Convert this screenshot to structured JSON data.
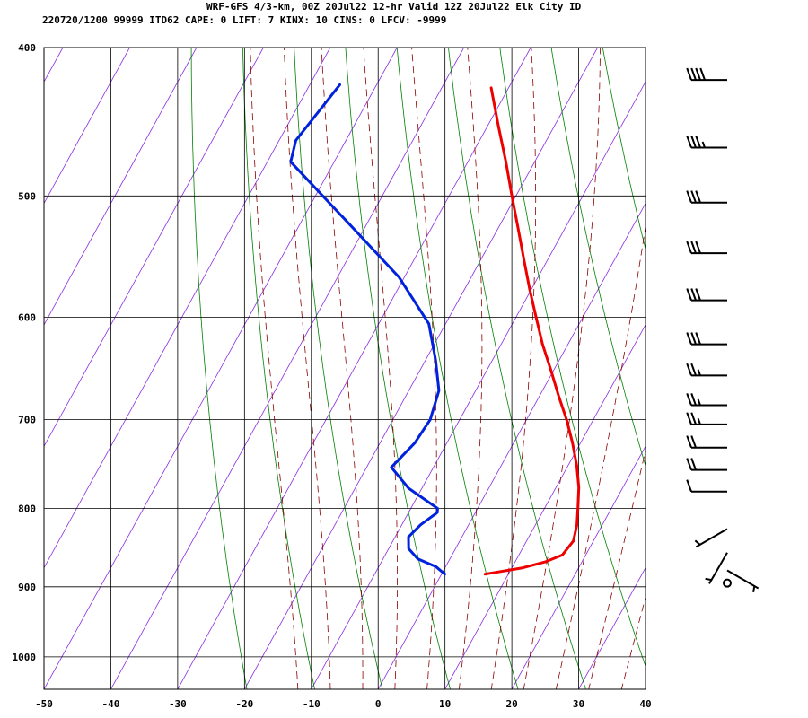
{
  "header": {
    "line1": "WRF-GFS 4/3-km, 00Z 20Jul22 12-hr Valid 12Z 20Jul22 Elk City ID",
    "line2": "220720/1200 99999  ITD62   CAPE:     0 LIFT:     7 KINX:    10 CINS:     0 LFCV: -9999"
  },
  "chart_data": {
    "type": "line",
    "title": "WRF-GFS 4/3-km, 00Z 20Jul22 12-hr Valid 12Z 20Jul22 Elk City ID",
    "xlabel": "",
    "ylabel": "",
    "x_range_C": [
      -50,
      40
    ],
    "y_range_hPa": [
      400,
      1050
    ],
    "y_scale": "log-pressure",
    "skew": "temperature isotherms skewed to the right",
    "x_ticks": [
      "-50",
      "-40",
      "-30",
      "-20",
      "-10",
      "0",
      "10",
      "20",
      "30",
      "40"
    ],
    "y_ticks": [
      "400",
      "500",
      "600",
      "700",
      "800",
      "900",
      "1000"
    ],
    "grid": true,
    "series": [
      {
        "id": "temperature",
        "color": "#ee0000",
        "points": [
          {
            "p": 883,
            "t": 6.5
          },
          {
            "p": 875,
            "t": 11.5
          },
          {
            "p": 867,
            "t": 14.5
          },
          {
            "p": 858,
            "t": 16.5
          },
          {
            "p": 840,
            "t": 17.0
          },
          {
            "p": 820,
            "t": 16.2
          },
          {
            "p": 800,
            "t": 15.0
          },
          {
            "p": 775,
            "t": 13.4
          },
          {
            "p": 750,
            "t": 11.3
          },
          {
            "p": 725,
            "t": 8.8
          },
          {
            "p": 700,
            "t": 6.0
          },
          {
            "p": 675,
            "t": 2.8
          },
          {
            "p": 650,
            "t": -0.4
          },
          {
            "p": 625,
            "t": -3.8
          },
          {
            "p": 600,
            "t": -7.0
          },
          {
            "p": 575,
            "t": -10.3
          },
          {
            "p": 550,
            "t": -13.6
          },
          {
            "p": 525,
            "t": -17.0
          },
          {
            "p": 500,
            "t": -20.6
          },
          {
            "p": 475,
            "t": -24.3
          },
          {
            "p": 450,
            "t": -28.4
          },
          {
            "p": 425,
            "t": -32.6
          }
        ]
      },
      {
        "id": "dewpoint",
        "color": "#0022dd",
        "points": [
          {
            "p": 883,
            "t": 0.5
          },
          {
            "p": 873,
            "t": -1.5
          },
          {
            "p": 863,
            "t": -4.8
          },
          {
            "p": 850,
            "t": -7.0
          },
          {
            "p": 835,
            "t": -8.0
          },
          {
            "p": 820,
            "t": -7.2
          },
          {
            "p": 805,
            "t": -5.7
          },
          {
            "p": 800,
            "t": -6.0
          },
          {
            "p": 776,
            "t": -12.0
          },
          {
            "p": 752,
            "t": -16.3
          },
          {
            "p": 725,
            "t": -14.8
          },
          {
            "p": 700,
            "t": -14.4
          },
          {
            "p": 670,
            "t": -15.5
          },
          {
            "p": 640,
            "t": -18.5
          },
          {
            "p": 606,
            "t": -22.5
          },
          {
            "p": 565,
            "t": -30.8
          },
          {
            "p": 522,
            "t": -42.5
          },
          {
            "p": 475,
            "t": -56.5
          },
          {
            "p": 460,
            "t": -57.5
          },
          {
            "p": 423,
            "t": -55.5
          }
        ]
      }
    ],
    "background_lines": {
      "isotherms_C": [
        -100,
        -90,
        -80,
        -70,
        -60,
        -50,
        -40,
        -30,
        -20,
        -10,
        0,
        10,
        20,
        30,
        40
      ],
      "dry_adiabats_K": [
        250,
        260,
        270,
        280,
        290,
        300,
        310,
        320,
        330,
        340,
        350,
        360,
        370,
        380,
        390
      ],
      "moist_adiabats_C": [
        -15,
        -10,
        -5,
        0,
        5,
        10,
        15,
        20,
        25,
        30,
        35
      ],
      "mixing_ratio_gkg": [
        0.4,
        1,
        2,
        3,
        5,
        8,
        12,
        20
      ]
    },
    "wind_barbs": [
      {
        "p": 420,
        "dir": 270,
        "kt": 40
      },
      {
        "p": 465,
        "dir": 270,
        "kt": 35
      },
      {
        "p": 505,
        "dir": 270,
        "kt": 30
      },
      {
        "p": 545,
        "dir": 270,
        "kt": 30
      },
      {
        "p": 585,
        "dir": 270,
        "kt": 30
      },
      {
        "p": 625,
        "dir": 270,
        "kt": 30
      },
      {
        "p": 655,
        "dir": 270,
        "kt": 25
      },
      {
        "p": 685,
        "dir": 270,
        "kt": 25
      },
      {
        "p": 705,
        "dir": 270,
        "kt": 25
      },
      {
        "p": 730,
        "dir": 270,
        "kt": 20
      },
      {
        "p": 755,
        "dir": 270,
        "kt": 20
      },
      {
        "p": 780,
        "dir": 270,
        "kt": 10
      },
      {
        "p": 825,
        "dir": 240,
        "kt": 5
      },
      {
        "p": 855,
        "dir": 210,
        "kt": 5
      },
      {
        "p": 878,
        "dir": 120,
        "kt": 5
      },
      {
        "p": 895,
        "dir": 0,
        "kt": 0
      }
    ],
    "colors": {
      "isotherm": "#8a2be2",
      "dry_adiabat": "#008000",
      "moist_adiabat": "#8b0000",
      "grid": "#000000",
      "temperature": "#ee0000",
      "dewpoint": "#0022dd",
      "barb": "#000000"
    }
  }
}
